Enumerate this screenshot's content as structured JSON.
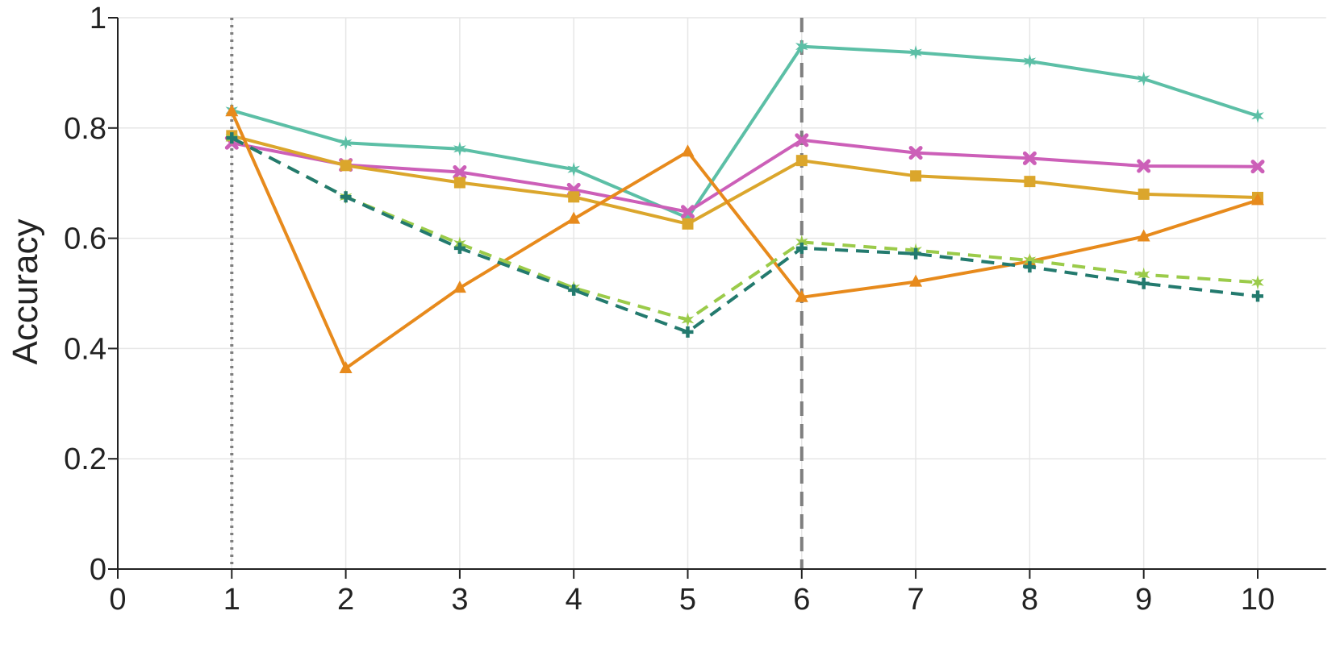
{
  "chart_data": {
    "type": "line",
    "title": "",
    "xlabel": "",
    "ylabel": "Accuracy",
    "xlim": [
      0,
      10.6
    ],
    "ylim": [
      0,
      1
    ],
    "xticks": [
      "0",
      "1",
      "2",
      "3",
      "4",
      "5",
      "6",
      "7",
      "8",
      "9",
      "10"
    ],
    "yticks": [
      "0",
      "0.2",
      "0.4",
      "0.6",
      "0.8",
      "1"
    ],
    "grid": true,
    "legend": "none",
    "x": [
      1,
      2,
      3,
      4,
      5,
      6,
      7,
      8,
      9,
      10
    ],
    "vlines": [
      {
        "x": 1,
        "style": "dotted",
        "color": "#7f7f7f"
      },
      {
        "x": 6,
        "style": "dashed",
        "color": "#7f7f7f"
      }
    ],
    "series": [
      {
        "color": "#5cbfa6",
        "dash": "solid",
        "marker": "star",
        "values": [
          0.832,
          0.773,
          0.762,
          0.725,
          0.637,
          0.948,
          0.937,
          0.921,
          0.889,
          0.822
        ]
      },
      {
        "color": "#cc5fb8",
        "dash": "solid",
        "marker": "x",
        "values": [
          0.773,
          0.733,
          0.72,
          0.688,
          0.648,
          0.778,
          0.755,
          0.745,
          0.731,
          0.73
        ]
      },
      {
        "color": "#dba62c",
        "dash": "solid",
        "marker": "square",
        "values": [
          0.786,
          0.732,
          0.701,
          0.675,
          0.626,
          0.741,
          0.713,
          0.703,
          0.68,
          0.674
        ]
      },
      {
        "color": "#e78a1c",
        "dash": "solid",
        "marker": "triangle",
        "values": [
          0.83,
          0.364,
          0.51,
          0.635,
          0.757,
          0.493,
          0.521,
          0.558,
          0.603,
          0.669
        ]
      },
      {
        "color": "#9bcb4a",
        "dash": "dashed",
        "marker": "star",
        "values": [
          0.782,
          0.675,
          0.59,
          0.51,
          0.452,
          0.593,
          0.578,
          0.56,
          0.534,
          0.52
        ]
      },
      {
        "color": "#237a6e",
        "dash": "dashed",
        "marker": "plus",
        "values": [
          0.782,
          0.675,
          0.582,
          0.506,
          0.43,
          0.582,
          0.572,
          0.548,
          0.518,
          0.495
        ]
      }
    ]
  }
}
